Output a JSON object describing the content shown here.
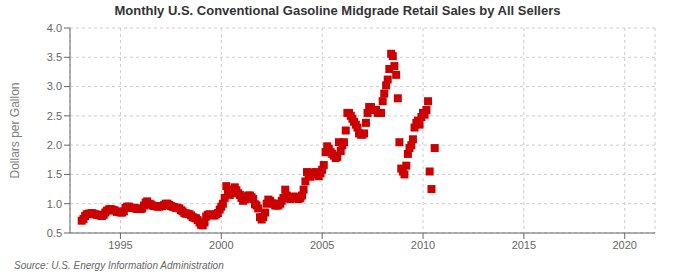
{
  "chart_data": {
    "type": "scatter",
    "title": "Monthly U.S. Conventional Gasoline Midgrade Retail Sales by All Sellers",
    "ylabel": "Dollars per Gallon",
    "annotation": "Source: U.S. Energy Information Administration",
    "xlim": [
      1992.5,
      2021.5
    ],
    "ylim": [
      0.5,
      4.0
    ],
    "xticks": [
      1995,
      2000,
      2005,
      2010,
      2015,
      2020
    ],
    "yticks": [
      0.5,
      {
        "value": 1.0,
        "label": "1.0"
      },
      1.5,
      {
        "value": 2.0,
        "label": "2.0"
      },
      2.5,
      {
        "value": 3.0,
        "label": "3.0"
      },
      3.5,
      {
        "value": 4.0,
        "label": "4.0"
      }
    ],
    "color": "#CC0000",
    "marker": "square",
    "grid": true,
    "x": [
      1993.08,
      1993.17,
      1993.25,
      1993.33,
      1993.42,
      1993.5,
      1993.58,
      1993.67,
      1993.75,
      1993.83,
      1993.92,
      1994.0,
      1994.08,
      1994.17,
      1994.25,
      1994.33,
      1994.42,
      1994.5,
      1994.58,
      1994.67,
      1994.75,
      1994.83,
      1994.92,
      1995.0,
      1995.08,
      1995.17,
      1995.25,
      1995.33,
      1995.42,
      1995.5,
      1995.58,
      1995.67,
      1995.75,
      1995.83,
      1995.92,
      1996.0,
      1996.08,
      1996.17,
      1996.25,
      1996.33,
      1996.42,
      1996.5,
      1996.58,
      1996.67,
      1996.75,
      1996.83,
      1996.92,
      1997.0,
      1997.08,
      1997.17,
      1997.25,
      1997.33,
      1997.42,
      1997.5,
      1997.58,
      1997.67,
      1997.75,
      1997.83,
      1997.92,
      1998.0,
      1998.08,
      1998.17,
      1998.25,
      1998.33,
      1998.42,
      1998.5,
      1998.58,
      1998.67,
      1998.75,
      1998.83,
      1998.92,
      1999.0,
      1999.08,
      1999.17,
      1999.25,
      1999.33,
      1999.42,
      1999.5,
      1999.58,
      1999.67,
      1999.75,
      1999.83,
      1999.92,
      2000.0,
      2000.08,
      2000.17,
      2000.25,
      2000.33,
      2000.42,
      2000.5,
      2000.58,
      2000.67,
      2000.75,
      2000.83,
      2000.92,
      2001.0,
      2001.08,
      2001.17,
      2001.25,
      2001.33,
      2001.42,
      2001.5,
      2001.58,
      2001.67,
      2001.75,
      2001.83,
      2001.92,
      2002.0,
      2002.08,
      2002.17,
      2002.25,
      2002.33,
      2002.42,
      2002.5,
      2002.58,
      2002.67,
      2002.75,
      2002.83,
      2002.92,
      2003.0,
      2003.08,
      2003.17,
      2003.25,
      2003.33,
      2003.42,
      2003.5,
      2003.58,
      2003.67,
      2003.75,
      2003.83,
      2003.92,
      2004.0,
      2004.08,
      2004.17,
      2004.25,
      2004.33,
      2004.42,
      2004.5,
      2004.58,
      2004.67,
      2004.75,
      2004.83,
      2004.92,
      2005.0,
      2005.08,
      2005.17,
      2005.25,
      2005.33,
      2005.42,
      2005.5,
      2005.58,
      2005.67,
      2005.75,
      2005.83,
      2005.92,
      2006.0,
      2006.08,
      2006.17,
      2006.25,
      2006.33,
      2006.42,
      2006.5,
      2006.58,
      2006.67,
      2006.75,
      2006.83,
      2006.92,
      2007.0,
      2007.08,
      2007.17,
      2007.25,
      2007.33,
      2007.42,
      2007.5,
      2007.58,
      2007.67,
      2007.75,
      2007.83,
      2007.92,
      2008.0,
      2008.08,
      2008.17,
      2008.25,
      2008.33,
      2008.42,
      2008.5,
      2008.58,
      2008.67,
      2008.75,
      2008.83,
      2008.92,
      2009.0,
      2009.08,
      2009.17,
      2009.25,
      2009.33,
      2009.42,
      2009.5,
      2009.58,
      2009.67,
      2009.75,
      2009.83,
      2009.92,
      2010.0,
      2010.08,
      2010.17,
      2010.25,
      2010.33,
      2010.42,
      2010.58
    ],
    "values": [
      0.71,
      0.74,
      0.79,
      0.82,
      0.83,
      0.83,
      0.84,
      0.83,
      0.82,
      0.81,
      0.81,
      0.8,
      0.79,
      0.81,
      0.85,
      0.88,
      0.9,
      0.91,
      0.9,
      0.89,
      0.88,
      0.86,
      0.86,
      0.85,
      0.85,
      0.87,
      0.93,
      0.95,
      0.95,
      0.93,
      0.93,
      0.93,
      0.92,
      0.91,
      0.91,
      0.91,
      0.92,
      0.97,
      1.02,
      1.04,
      1.0,
      0.99,
      0.97,
      0.96,
      0.96,
      0.95,
      0.95,
      0.96,
      0.96,
      0.98,
      1.0,
      1.0,
      0.98,
      0.96,
      0.95,
      0.94,
      0.93,
      0.93,
      0.92,
      0.89,
      0.87,
      0.84,
      0.83,
      0.83,
      0.82,
      0.8,
      0.77,
      0.76,
      0.75,
      0.72,
      0.68,
      0.64,
      0.63,
      0.68,
      0.78,
      0.81,
      0.82,
      0.81,
      0.8,
      0.8,
      0.82,
      0.84,
      0.9,
      0.95,
      1.0,
      1.1,
      1.3,
      1.22,
      1.15,
      1.18,
      1.24,
      1.28,
      1.23,
      1.18,
      1.15,
      1.1,
      1.05,
      1.07,
      1.12,
      1.14,
      1.14,
      1.11,
      1.08,
      0.99,
      0.97,
      0.92,
      0.77,
      0.73,
      0.77,
      0.85,
      1.0,
      1.07,
      1.05,
      1.01,
      1.0,
      0.97,
      0.97,
      0.97,
      1.0,
      1.05,
      1.1,
      1.24,
      1.14,
      1.1,
      1.08,
      1.1,
      1.12,
      1.12,
      1.1,
      1.08,
      1.1,
      1.14,
      1.24,
      1.38,
      1.54,
      1.49,
      1.46,
      1.53,
      1.52,
      1.54,
      1.5,
      1.47,
      1.52,
      1.58,
      1.66,
      1.88,
      1.98,
      1.94,
      1.88,
      1.85,
      1.82,
      1.78,
      1.8,
      2.05,
      1.9,
      2.0,
      2.05,
      2.25,
      2.55,
      2.55,
      2.5,
      2.45,
      2.4,
      2.35,
      2.3,
      2.2,
      2.18,
      2.18,
      2.2,
      2.38,
      2.55,
      2.65,
      2.65,
      2.6,
      2.6,
      2.6,
      2.55,
      2.55,
      2.55,
      2.75,
      2.88,
      3.02,
      3.12,
      3.3,
      3.56,
      3.52,
      3.35,
      3.2,
      2.8,
      2.05,
      1.6,
      1.55,
      1.5,
      1.65,
      1.85,
      1.95,
      2.0,
      2.1,
      2.3,
      2.38,
      2.42,
      2.35,
      2.48,
      2.55,
      2.52,
      2.6,
      2.75,
      1.55,
      1.25,
      1.95
    ]
  }
}
